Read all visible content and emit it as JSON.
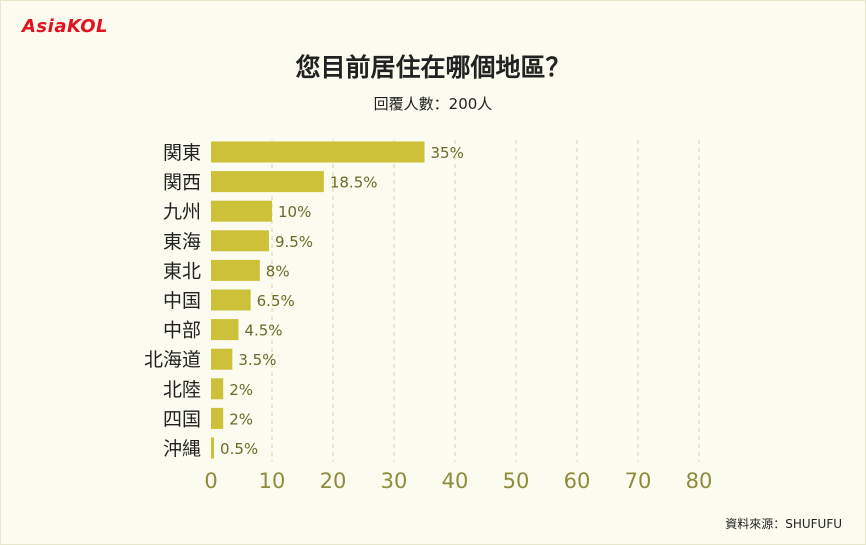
{
  "header": {
    "logo_text": "AsiaKOL",
    "title": "您目前居住在哪個地區？",
    "subtitle": "回覆人數：200人"
  },
  "footer": {
    "source": "資料來源：SHUFUFU"
  },
  "colors": {
    "bar": "#cdc13a",
    "grid": "#d9d6ad",
    "background": "#fbfbef",
    "logo": "#e2131f"
  },
  "chart_data": {
    "type": "bar",
    "orientation": "horizontal",
    "title": "您目前居住在哪個地區？",
    "subtitle": "回覆人數：200人",
    "categories": [
      "関東",
      "関西",
      "九州",
      "東海",
      "東北",
      "中国",
      "中部",
      "北海道",
      "北陸",
      "四国",
      "沖縄"
    ],
    "values": [
      35,
      18.5,
      10,
      9.5,
      8,
      6.5,
      4.5,
      3.5,
      2,
      2,
      0.5
    ],
    "value_labels": [
      "35%",
      "18.5%",
      "10%",
      "9.5%",
      "8%",
      "6.5%",
      "4.5%",
      "3.5%",
      "2%",
      "2%",
      "0.5%"
    ],
    "x_ticks": [
      "0",
      "10",
      "20",
      "30",
      "40",
      "50",
      "60",
      "70",
      "80"
    ],
    "xlim": [
      0,
      80
    ],
    "grid": true
  }
}
